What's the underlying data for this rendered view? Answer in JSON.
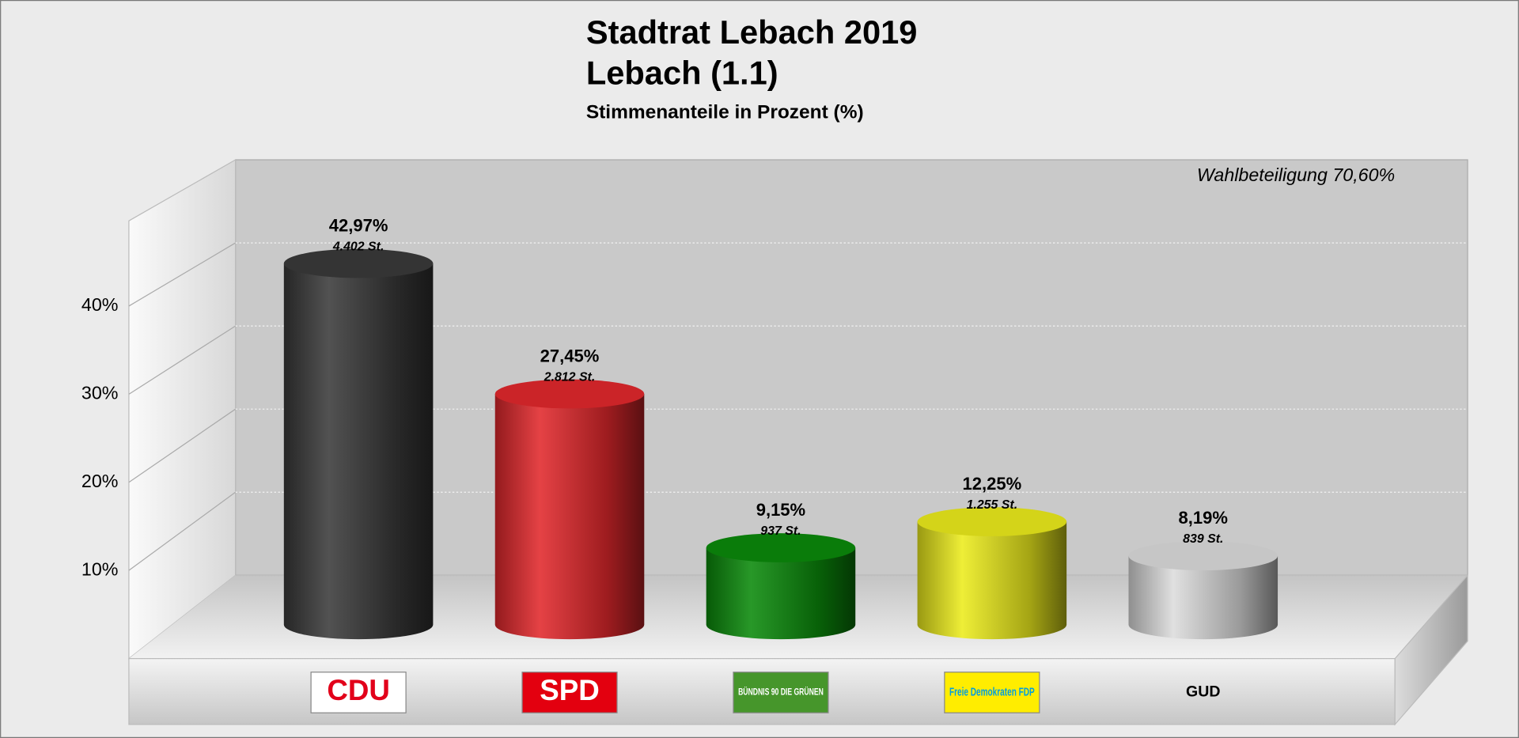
{
  "chart_data": {
    "type": "bar",
    "title": "Stadtrat Lebach 2019",
    "subtitle": "Lebach (1.1)",
    "y_label": "Stimmenanteile in Prozent (%)",
    "annotation": "Wahlbeteiligung 70,60%",
    "categories": [
      "CDU",
      "SPD",
      "BÜNDNIS 90 DIE GRÜNEN",
      "Freie Demokraten FDP",
      "GUD"
    ],
    "values": [
      42.97,
      27.45,
      9.15,
      12.25,
      8.19
    ],
    "value_labels": [
      "42,97%",
      "27,45%",
      "9,15%",
      "12,25%",
      "8,19%"
    ],
    "vote_labels": [
      "4.402 St.",
      "2.812 St.",
      "937 St.",
      "1.255 St.",
      "839 St."
    ],
    "colors": [
      "#3a3a3a",
      "#e2282c",
      "#0b8a0b",
      "#ecec1c",
      "#dcdcdc"
    ],
    "ylim": [
      0,
      50
    ],
    "yticks": [
      {
        "value": 10,
        "label": "10%"
      },
      {
        "value": 20,
        "label": "20%"
      },
      {
        "value": 30,
        "label": "30%"
      },
      {
        "value": 40,
        "label": "40%"
      }
    ],
    "grid": true
  }
}
